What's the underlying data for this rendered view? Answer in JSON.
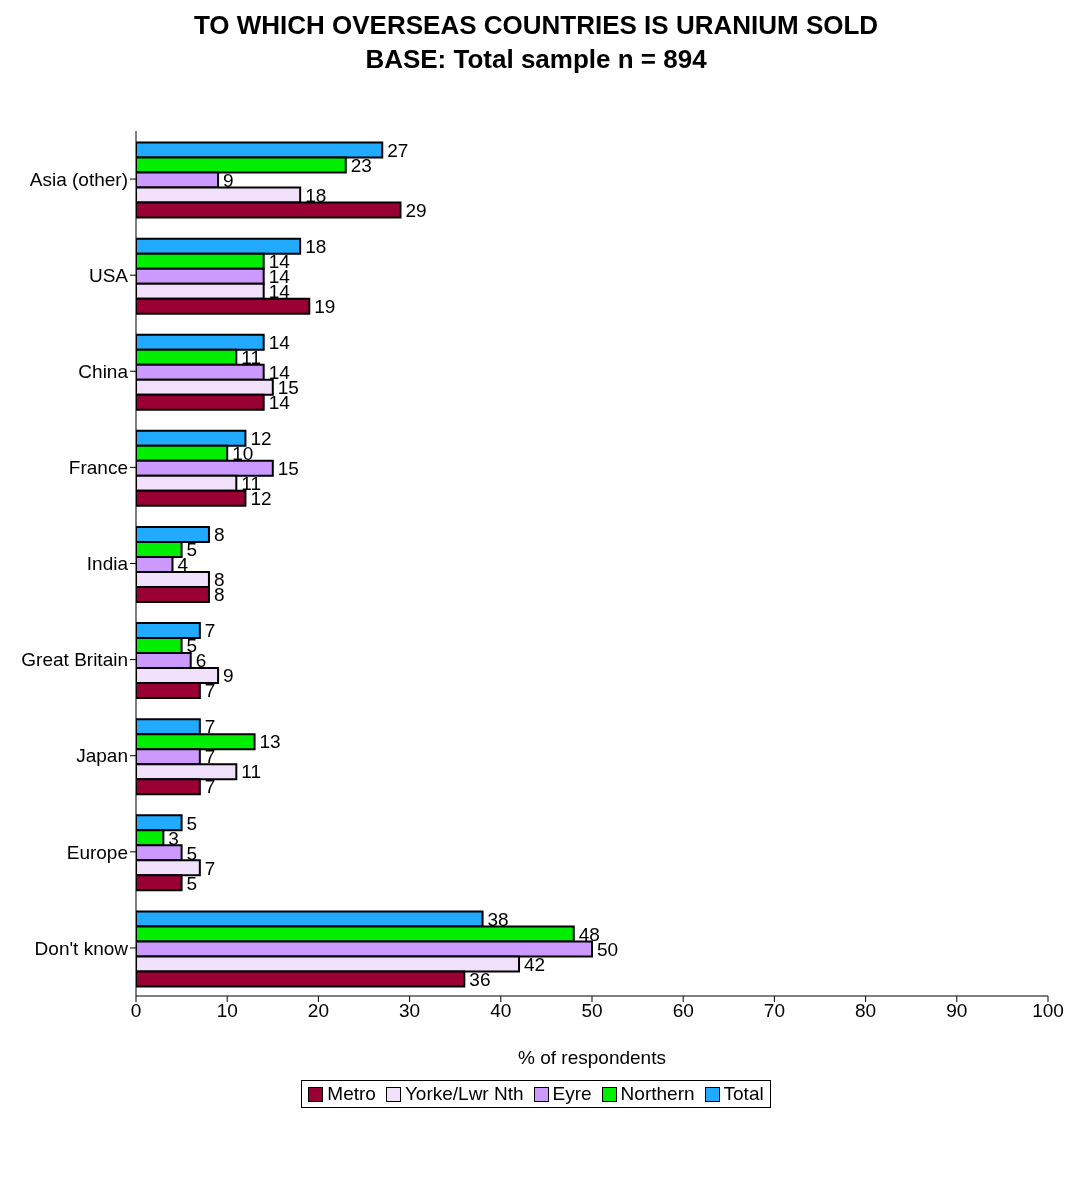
{
  "chart_data": {
    "type": "bar",
    "orientation": "horizontal",
    "title": "TO WHICH OVERSEAS COUNTRIES IS URANIUM SOLD",
    "subtitle": "BASE: Total sample n = 894",
    "xlabel": "% of respondents",
    "categories": [
      "Asia (other)",
      "USA",
      "China",
      "France",
      "India",
      "Great Britain",
      "Japan",
      "Europe",
      "Don't know"
    ],
    "series": [
      {
        "name": "Metro",
        "color": "#990033",
        "values": [
          29,
          19,
          14,
          12,
          8,
          7,
          7,
          5,
          36
        ]
      },
      {
        "name": "Yorke/Lwr Nth",
        "color": "#f0e0fa",
        "values": [
          18,
          14,
          15,
          11,
          8,
          9,
          11,
          7,
          42
        ]
      },
      {
        "name": "Eyre",
        "color": "#cc99ff",
        "values": [
          9,
          14,
          14,
          15,
          4,
          6,
          7,
          5,
          50
        ]
      },
      {
        "name": "Northern",
        "color": "#00ee00",
        "values": [
          23,
          14,
          11,
          10,
          5,
          5,
          13,
          3,
          48
        ]
      },
      {
        "name": "Total",
        "color": "#22aaff",
        "values": [
          27,
          18,
          14,
          12,
          8,
          7,
          7,
          5,
          38
        ]
      }
    ],
    "xlim": [
      0,
      100
    ],
    "xticks": [
      0,
      10,
      20,
      30,
      40,
      50,
      60,
      70,
      80,
      90,
      100
    ],
    "data_labels": true,
    "legend": "bottom",
    "grid": false
  }
}
